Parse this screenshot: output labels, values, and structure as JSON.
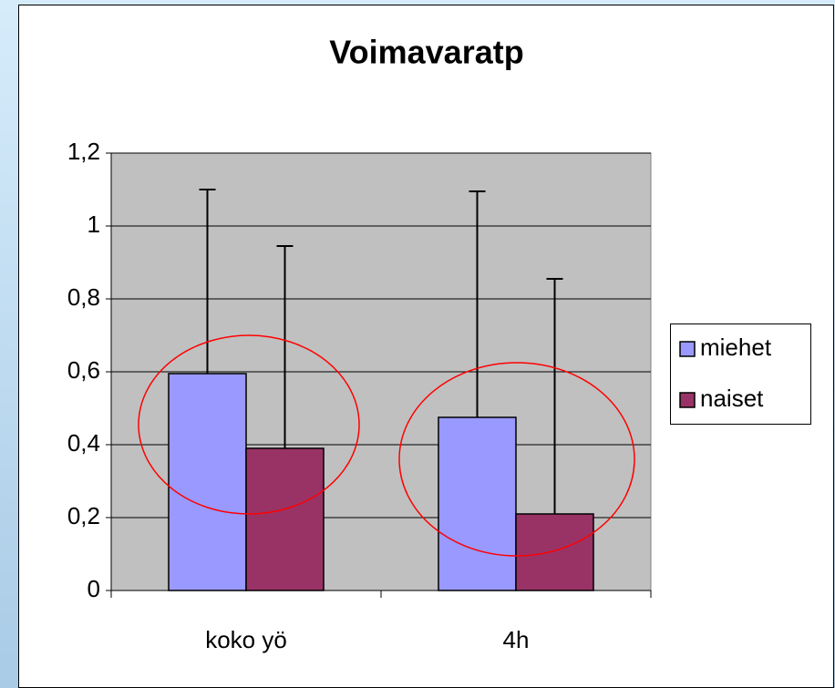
{
  "chart_data": {
    "type": "bar",
    "title": "Voimavaratp",
    "categories": [
      "koko yö",
      "4h"
    ],
    "series": [
      {
        "name": "miehet",
        "color": "#9999ff",
        "values": [
          0.595,
          0.475
        ],
        "errors": [
          0.505,
          0.62
        ]
      },
      {
        "name": "naiset",
        "color": "#993366",
        "values": [
          0.39,
          0.21
        ],
        "errors": [
          0.555,
          0.645
        ]
      }
    ],
    "ylim": [
      0,
      1.2
    ],
    "yticks": [
      0,
      {
        "value": 0.2,
        "label": "0,2"
      },
      {
        "value": 0.4,
        "label": "0,4"
      },
      {
        "value": 0.6,
        "label": "0,6"
      },
      {
        "value": 0.8,
        "label": "0,8"
      },
      1,
      {
        "value": 1.2,
        "label": "1,2"
      }
    ],
    "grid": true,
    "legend": "right"
  }
}
